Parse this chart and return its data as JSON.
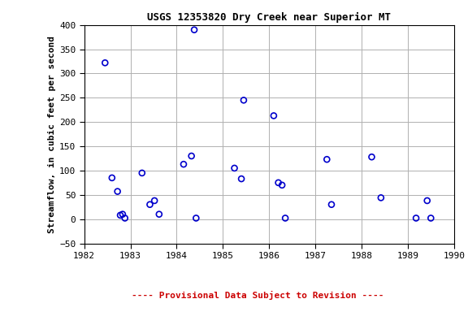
{
  "title": "USGS 12353820 Dry Creek near Superior MT",
  "ylabel": "Streamflow, in cubic feet per second",
  "xlim": [
    1982,
    1990
  ],
  "ylim": [
    -50,
    400
  ],
  "xticks": [
    1982,
    1983,
    1984,
    1985,
    1986,
    1987,
    1988,
    1989,
    1990
  ],
  "yticks": [
    -50,
    0,
    50,
    100,
    150,
    200,
    250,
    300,
    350,
    400
  ],
  "x": [
    1982.45,
    1982.6,
    1982.72,
    1982.78,
    1982.83,
    1982.88,
    1983.25,
    1983.42,
    1983.52,
    1983.62,
    1984.15,
    1984.32,
    1984.38,
    1984.42,
    1985.25,
    1985.4,
    1985.45,
    1986.1,
    1986.2,
    1986.28,
    1986.35,
    1987.25,
    1987.35,
    1988.22,
    1988.42,
    1989.18,
    1989.42,
    1989.5
  ],
  "y": [
    322,
    85,
    57,
    8,
    10,
    2,
    95,
    30,
    38,
    10,
    113,
    130,
    390,
    2,
    105,
    83,
    245,
    213,
    75,
    70,
    2,
    123,
    30,
    128,
    44,
    2,
    38,
    2
  ],
  "marker_color": "#0000cc",
  "marker_size": 5,
  "grid_color": "#b0b0b0",
  "background_color": "#ffffff",
  "title_fontsize": 9,
  "ylabel_fontsize": 8,
  "tick_fontsize": 8,
  "provisional_text": "---- Provisional Data Subject to Revision ----",
  "provisional_color": "#cc0000",
  "provisional_fontsize": 8
}
